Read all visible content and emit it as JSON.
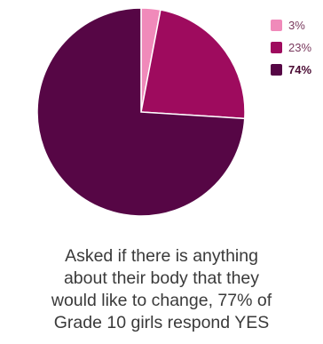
{
  "chart_data": {
    "type": "pie",
    "slices": [
      {
        "label": "3%",
        "value": 3,
        "color": "#f08aba"
      },
      {
        "label": "23%",
        "value": 23,
        "color": "#9e0b5e"
      },
      {
        "label": "74%",
        "value": 74,
        "color": "#560645"
      }
    ],
    "legend": "top-right",
    "caption_lines": [
      "Asked if there is anything",
      "about their body that they",
      "would like to change, 77% of",
      "Grade 10 girls respond YES"
    ]
  }
}
